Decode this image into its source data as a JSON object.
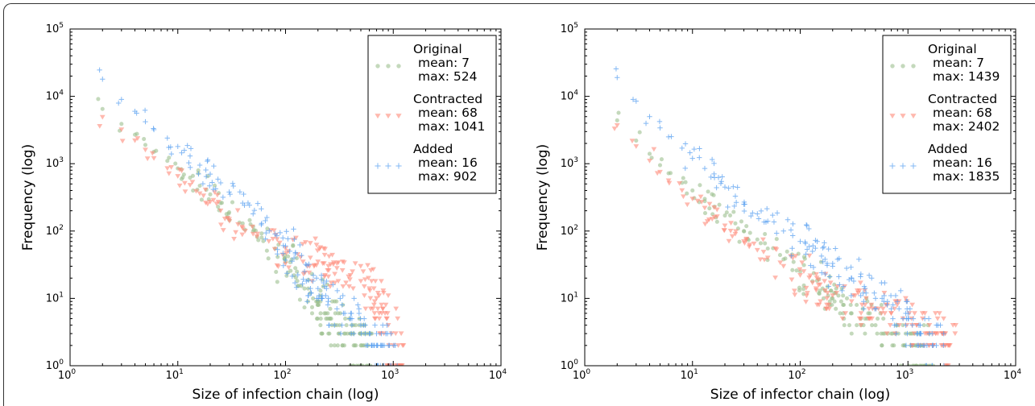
{
  "chart_data": [
    {
      "type": "scatter",
      "xlabel": "Size of infection chain (log)",
      "ylabel": "Frequency (log)",
      "xscale": "log",
      "yscale": "log",
      "xlim": [
        1,
        10000
      ],
      "ylim": [
        1,
        100000
      ],
      "xticks": [
        "10^0",
        "10^1",
        "10^2",
        "10^3",
        "10^4"
      ],
      "yticks": [
        "10^0",
        "10^1",
        "10^2",
        "10^3",
        "10^4",
        "10^5"
      ],
      "legend_position": "top-right",
      "series": [
        {
          "name": "Original",
          "marker": "circle",
          "color": "#9dc08f",
          "stats": [
            "mean: 7",
            "max: 524"
          ],
          "points": [
            [
              2,
              6500
            ],
            [
              3,
              3900
            ],
            [
              4,
              2700
            ],
            [
              5,
              1900
            ],
            [
              6,
              1500
            ],
            [
              8,
              1100
            ],
            [
              10,
              850
            ],
            [
              13,
              620
            ],
            [
              16,
              470
            ],
            [
              20,
              350
            ],
            [
              25,
              260
            ],
            [
              30,
              190
            ],
            [
              40,
              130
            ],
            [
              50,
              100
            ],
            [
              60,
              80
            ],
            [
              80,
              55
            ],
            [
              100,
              35
            ],
            [
              120,
              22
            ],
            [
              150,
              14
            ],
            [
              180,
              10
            ],
            [
              200,
              8
            ],
            [
              230,
              6
            ],
            [
              260,
              5
            ],
            [
              300,
              4
            ],
            [
              350,
              3
            ],
            [
              400,
              3
            ],
            [
              450,
              2
            ],
            [
              500,
              2
            ],
            [
              524,
              2
            ]
          ]
        },
        {
          "name": "Contracted",
          "marker": "triangle-down",
          "color": "#ff8a7a",
          "stats": [
            "mean: 68",
            "max: 1041"
          ],
          "points": [
            [
              2,
              4900
            ],
            [
              3,
              3200
            ],
            [
              4,
              2200
            ],
            [
              5,
              1600
            ],
            [
              6,
              1200
            ],
            [
              8,
              850
            ],
            [
              10,
              650
            ],
            [
              13,
              480
            ],
            [
              16,
              360
            ],
            [
              20,
              270
            ],
            [
              25,
              200
            ],
            [
              30,
              150
            ],
            [
              40,
              110
            ],
            [
              50,
              90
            ],
            [
              70,
              70
            ],
            [
              100,
              55
            ],
            [
              130,
              45
            ],
            [
              170,
              40
            ],
            [
              200,
              35
            ],
            [
              250,
              30
            ],
            [
              300,
              28
            ],
            [
              400,
              22
            ],
            [
              500,
              18
            ],
            [
              600,
              14
            ],
            [
              700,
              10
            ],
            [
              800,
              7
            ],
            [
              900,
              4
            ],
            [
              1000,
              2
            ],
            [
              1041,
              1
            ]
          ]
        },
        {
          "name": "Added",
          "marker": "plus",
          "color": "#5aa0f0",
          "stats": [
            "mean: 16",
            "max: 902"
          ],
          "points": [
            [
              2,
              18000
            ],
            [
              3,
              9000
            ],
            [
              4,
              6000
            ],
            [
              5,
              4200
            ],
            [
              6,
              3200
            ],
            [
              8,
              2400
            ],
            [
              10,
              1800
            ],
            [
              13,
              1300
            ],
            [
              16,
              950
            ],
            [
              20,
              700
            ],
            [
              25,
              520
            ],
            [
              30,
              380
            ],
            [
              40,
              260
            ],
            [
              50,
              180
            ],
            [
              60,
              130
            ],
            [
              80,
              90
            ],
            [
              100,
              60
            ],
            [
              120,
              40
            ],
            [
              150,
              25
            ],
            [
              180,
              18
            ],
            [
              200,
              14
            ],
            [
              250,
              10
            ],
            [
              300,
              7
            ],
            [
              400,
              5
            ],
            [
              500,
              4
            ],
            [
              600,
              3
            ],
            [
              700,
              2
            ],
            [
              800,
              2
            ],
            [
              902,
              2
            ]
          ]
        }
      ]
    },
    {
      "type": "scatter",
      "xlabel": "Size of infector chain (log)",
      "ylabel": "Frequency (log)",
      "xscale": "log",
      "yscale": "log",
      "xlim": [
        1,
        10000
      ],
      "ylim": [
        1,
        100000
      ],
      "xticks": [
        "10^0",
        "10^1",
        "10^2",
        "10^3",
        "10^4"
      ],
      "yticks": [
        "10^0",
        "10^1",
        "10^2",
        "10^3",
        "10^4",
        "10^5"
      ],
      "legend_position": "top-right",
      "series": [
        {
          "name": "Original",
          "marker": "circle",
          "color": "#9dc08f",
          "stats": [
            "mean: 7",
            "max: 1439"
          ],
          "points": [
            [
              2,
              4400
            ],
            [
              3,
              2200
            ],
            [
              4,
              1400
            ],
            [
              5,
              950
            ],
            [
              6,
              720
            ],
            [
              8,
              520
            ],
            [
              10,
              400
            ],
            [
              13,
              300
            ],
            [
              16,
              230
            ],
            [
              20,
              170
            ],
            [
              25,
              130
            ],
            [
              30,
              100
            ],
            [
              40,
              75
            ],
            [
              50,
              55
            ],
            [
              70,
              38
            ],
            [
              100,
              25
            ],
            [
              130,
              18
            ],
            [
              170,
              13
            ],
            [
              200,
              10
            ],
            [
              250,
              8
            ],
            [
              300,
              6
            ],
            [
              400,
              5
            ],
            [
              500,
              4
            ],
            [
              700,
              3
            ],
            [
              900,
              2
            ],
            [
              1100,
              2
            ],
            [
              1300,
              2
            ],
            [
              1439,
              1
            ]
          ]
        },
        {
          "name": "Contracted",
          "marker": "triangle-down",
          "color": "#ff8a7a",
          "stats": [
            "mean: 68",
            "max: 2402"
          ],
          "points": [
            [
              2,
              3700
            ],
            [
              3,
              1800
            ],
            [
              4,
              1100
            ],
            [
              5,
              750
            ],
            [
              6,
              560
            ],
            [
              8,
              400
            ],
            [
              10,
              300
            ],
            [
              13,
              220
            ],
            [
              16,
              160
            ],
            [
              20,
              120
            ],
            [
              25,
              90
            ],
            [
              30,
              70
            ],
            [
              40,
              52
            ],
            [
              50,
              40
            ],
            [
              70,
              30
            ],
            [
              100,
              22
            ],
            [
              130,
              17
            ],
            [
              170,
              13
            ],
            [
              200,
              11
            ],
            [
              300,
              9
            ],
            [
              400,
              8
            ],
            [
              500,
              7
            ],
            [
              700,
              6
            ],
            [
              900,
              5
            ],
            [
              1200,
              4
            ],
            [
              1500,
              3
            ],
            [
              1800,
              3
            ],
            [
              2100,
              2
            ],
            [
              2402,
              2
            ]
          ]
        },
        {
          "name": "Added",
          "marker": "plus",
          "color": "#5aa0f0",
          "stats": [
            "mean: 16",
            "max: 1835"
          ],
          "points": [
            [
              2,
              19000
            ],
            [
              3,
              8500
            ],
            [
              4,
              5000
            ],
            [
              5,
              3400
            ],
            [
              6,
              2500
            ],
            [
              8,
              1700
            ],
            [
              10,
              1200
            ],
            [
              13,
              850
            ],
            [
              16,
              620
            ],
            [
              20,
              450
            ],
            [
              25,
              330
            ],
            [
              30,
              250
            ],
            [
              40,
              180
            ],
            [
              50,
              140
            ],
            [
              70,
              100
            ],
            [
              100,
              70
            ],
            [
              130,
              50
            ],
            [
              170,
              38
            ],
            [
              200,
              30
            ],
            [
              300,
              20
            ],
            [
              400,
              14
            ],
            [
              500,
              10
            ],
            [
              700,
              7
            ],
            [
              900,
              5
            ],
            [
              1100,
              4
            ],
            [
              1300,
              3
            ],
            [
              1500,
              2
            ],
            [
              1835,
              2
            ]
          ]
        }
      ]
    }
  ]
}
